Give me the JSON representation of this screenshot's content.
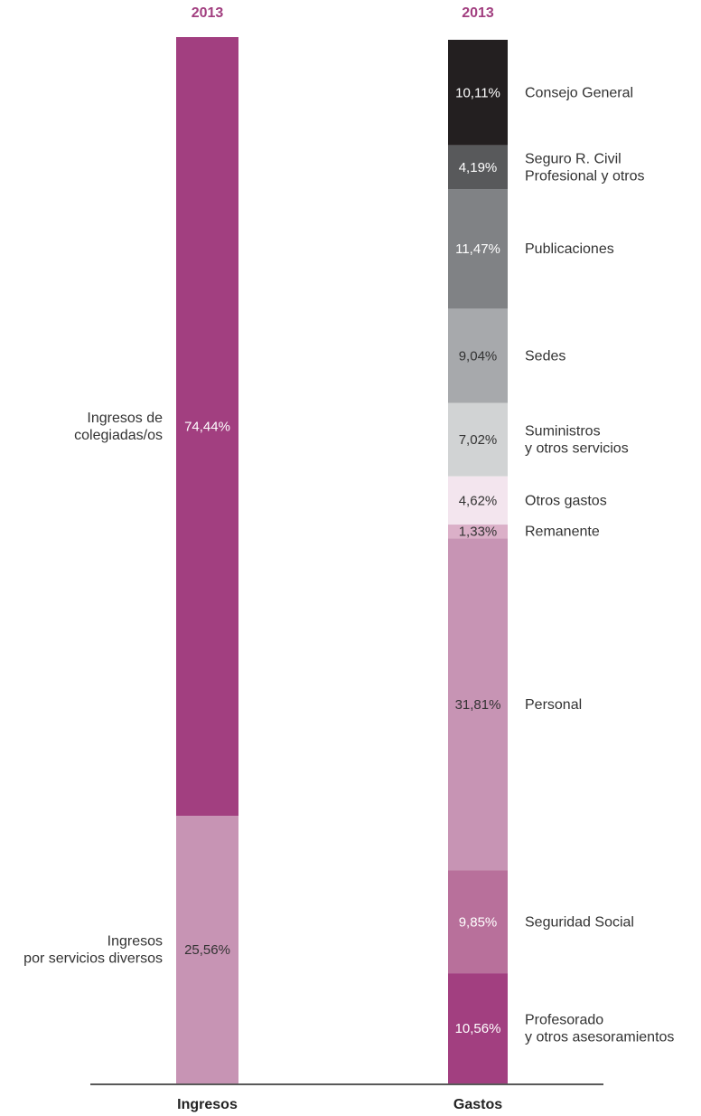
{
  "chart_data": {
    "type": "bar",
    "stacked": true,
    "normalized": true,
    "unit": "%",
    "bars": [
      {
        "label": "Ingresos",
        "year": "2013",
        "segments": [
          {
            "name": "Ingresos de\ncolegiadas/os",
            "value": 74.44,
            "display": "74,44%",
            "color": "#a23f80",
            "text_color": "#ffffff"
          },
          {
            "name": "Ingresos\npor servicios diversos",
            "value": 25.56,
            "display": "25,56%",
            "color": "#c794b4",
            "text_color": "#333333"
          }
        ]
      },
      {
        "label": "Gastos",
        "year": "2013",
        "segments": [
          {
            "name": "Consejo General",
            "value": 10.11,
            "display": "10,11%",
            "color": "#231f20",
            "text_color": "#ffffff"
          },
          {
            "name": "Seguro R. Civil\nProfesional y otros",
            "value": 4.19,
            "display": "4,19%",
            "color": "#58595b",
            "text_color": "#ffffff"
          },
          {
            "name": "Publicaciones",
            "value": 11.47,
            "display": "11,47%",
            "color": "#808285",
            "text_color": "#ffffff"
          },
          {
            "name": "Sedes",
            "value": 9.04,
            "display": "9,04%",
            "color": "#a7a9ac",
            "text_color": "#333333"
          },
          {
            "name": "Suministros\ny otros servicios",
            "value": 7.02,
            "display": "7,02%",
            "color": "#d1d3d4",
            "text_color": "#333333"
          },
          {
            "name": "Otros gastos",
            "value": 4.62,
            "display": "4,62%",
            "color": "#f3e5ee",
            "text_color": "#333333"
          },
          {
            "name": "Remanente",
            "value": 1.33,
            "display": "1,33%",
            "color": "#dbb0c8",
            "text_color": "#333333"
          },
          {
            "name": "Personal",
            "value": 31.81,
            "display": "31,81%",
            "color": "#c794b4",
            "text_color": "#333333"
          },
          {
            "name": "Seguridad Social",
            "value": 9.85,
            "display": "9,85%",
            "color": "#b8709b",
            "text_color": "#ffffff"
          },
          {
            "name": "Profesorado\ny otros asesoramientos",
            "value": 10.56,
            "display": "10,56%",
            "color": "#a23f80",
            "text_color": "#ffffff"
          }
        ]
      }
    ],
    "colors": {
      "year": "#a23f80",
      "axis": "#222222"
    }
  }
}
